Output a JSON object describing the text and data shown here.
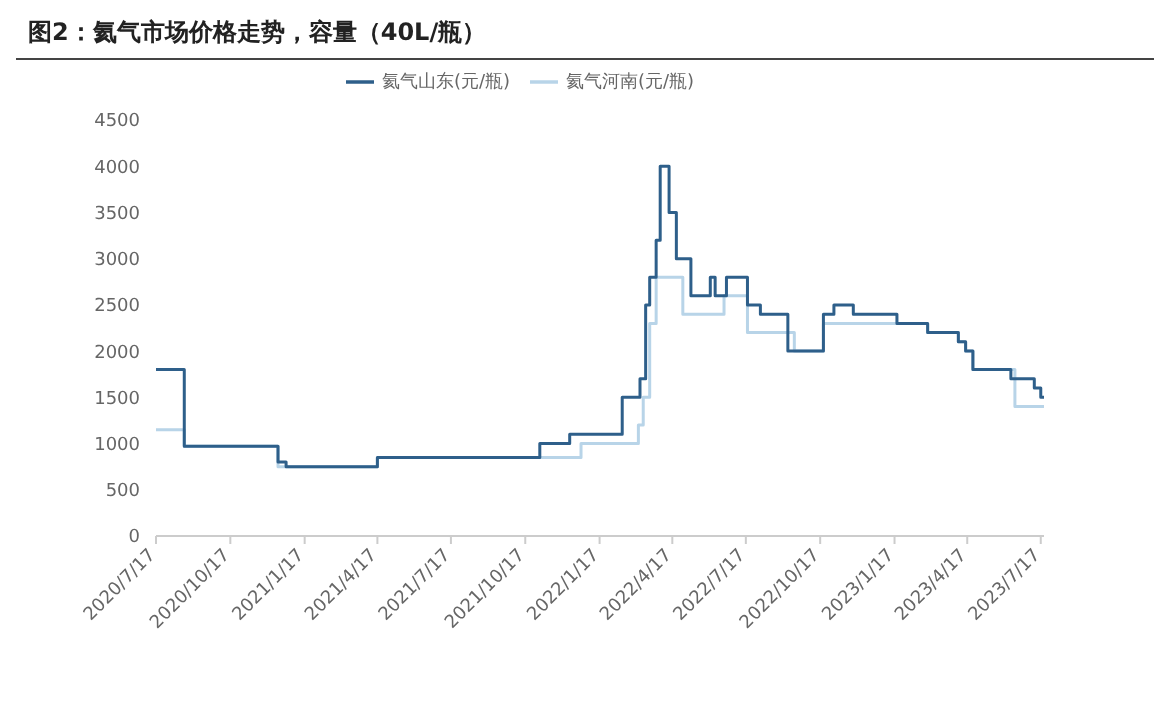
{
  "chart_data": {
    "type": "step",
    "title": "图2：氦气市场价格走势，容量（40L/瓶）",
    "series": [
      {
        "name": "氦气山东(元/瓶)",
        "color": "#2e5f8a",
        "x": [
          "2020-07-17",
          "2020-08-21",
          "2020-12-15",
          "2020-12-25",
          "2021-04-17",
          "2021-11-04",
          "2021-12-11",
          "2022-02-14",
          "2022-03-08",
          "2022-03-15",
          "2022-03-20",
          "2022-03-28",
          "2022-04-02",
          "2022-04-13",
          "2022-04-22",
          "2022-05-10",
          "2022-06-03",
          "2022-06-09",
          "2022-06-23",
          "2022-07-19",
          "2022-08-04",
          "2022-09-07",
          "2022-10-21",
          "2022-11-03",
          "2022-11-27",
          "2023-01-20",
          "2023-02-27",
          "2023-04-06",
          "2023-04-15",
          "2023-04-24",
          "2023-06-10",
          "2023-07-09",
          "2023-07-17",
          "2023-07-21"
        ],
        "values": [
          1800,
          970,
          800,
          750,
          850,
          1000,
          1100,
          1500,
          1700,
          2500,
          2800,
          3200,
          4000,
          3500,
          3000,
          2600,
          2800,
          2600,
          2800,
          2500,
          2400,
          2000,
          2400,
          2500,
          2400,
          2300,
          2200,
          2100,
          2000,
          1800,
          1700,
          1600,
          1500,
          1500
        ]
      },
      {
        "name": "氦气河南(元/瓶)",
        "color": "#b8d4e8",
        "x": [
          "2020-07-17",
          "2020-08-21",
          "2020-12-15",
          "2021-04-17",
          "2021-12-25",
          "2022-03-06",
          "2022-03-12",
          "2022-03-20",
          "2022-03-28",
          "2022-04-30",
          "2022-06-20",
          "2022-07-19",
          "2022-09-15",
          "2022-10-21",
          "2023-02-27",
          "2023-04-06",
          "2023-04-15",
          "2023-04-24",
          "2023-06-15",
          "2023-07-21"
        ],
        "values": [
          1150,
          970,
          750,
          850,
          1000,
          1200,
          1500,
          2300,
          2800,
          2400,
          2600,
          2200,
          2000,
          2300,
          2200,
          2100,
          2000,
          1800,
          1400,
          1400
        ]
      }
    ],
    "xlim": [
      "2020-07-17",
      "2023-07-21"
    ],
    "xticks": [
      {
        "value": "2020-07-17",
        "label": "2020/7/17"
      },
      {
        "value": "2020-10-17",
        "label": "2020/10/17"
      },
      {
        "value": "2021-01-17",
        "label": "2021/1/17"
      },
      {
        "value": "2021-04-17",
        "label": "2021/4/17"
      },
      {
        "value": "2021-07-17",
        "label": "2021/7/17"
      },
      {
        "value": "2021-10-17",
        "label": "2021/10/17"
      },
      {
        "value": "2022-01-17",
        "label": "2022/1/17"
      },
      {
        "value": "2022-04-17",
        "label": "2022/4/17"
      },
      {
        "value": "2022-07-17",
        "label": "2022/7/17"
      },
      {
        "value": "2022-10-17",
        "label": "2022/10/17"
      },
      {
        "value": "2023-01-17",
        "label": "2023/1/17"
      },
      {
        "value": "2023-04-17",
        "label": "2023/4/17"
      },
      {
        "value": "2023-07-17",
        "label": "2023/7/17"
      }
    ],
    "ylim": [
      0,
      4500
    ],
    "yticks": [
      0,
      500,
      1000,
      1500,
      2000,
      2500,
      3000,
      3500,
      4000,
      4500
    ],
    "legend": "top",
    "grid": false
  }
}
